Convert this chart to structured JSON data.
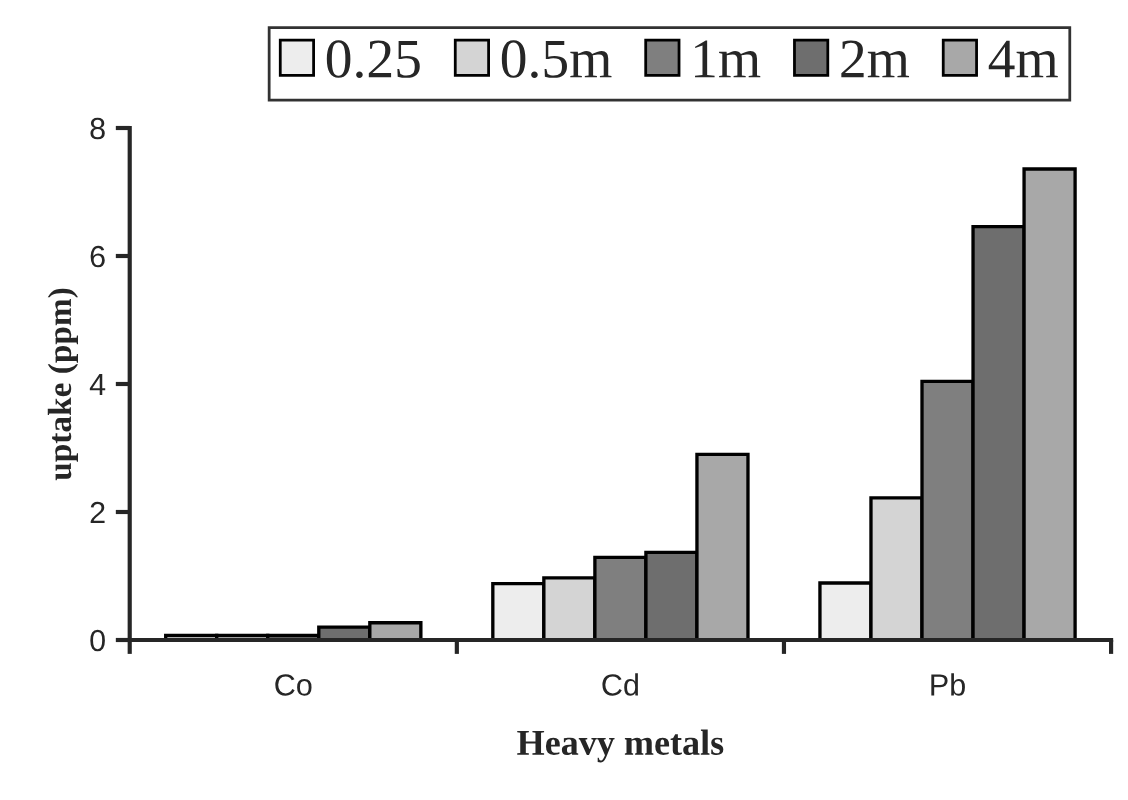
{
  "chart_data": {
    "type": "bar",
    "xlabel": "Heavy metals",
    "ylabel": "uptake (ppm)",
    "categories": [
      "Co",
      "Cd",
      "Pb"
    ],
    "series": [
      {
        "name": "0.25",
        "color": "#ededed",
        "values": [
          0.07,
          0.88,
          0.89
        ]
      },
      {
        "name": "0.5m",
        "color": "#d4d4d4",
        "values": [
          0.07,
          0.97,
          2.22
        ]
      },
      {
        "name": "1m",
        "color": "#7f7f7f",
        "values": [
          0.07,
          1.29,
          4.04
        ]
      },
      {
        "name": "2m",
        "color": "#6e6e6e",
        "values": [
          0.2,
          1.37,
          6.46
        ]
      },
      {
        "name": "4m",
        "color": "#a8a8a8",
        "values": [
          0.27,
          2.9,
          7.36
        ]
      }
    ],
    "ylim": [
      0,
      8
    ],
    "yticks": [
      0,
      2,
      4,
      6,
      8
    ],
    "grid": false,
    "legend": "top"
  }
}
